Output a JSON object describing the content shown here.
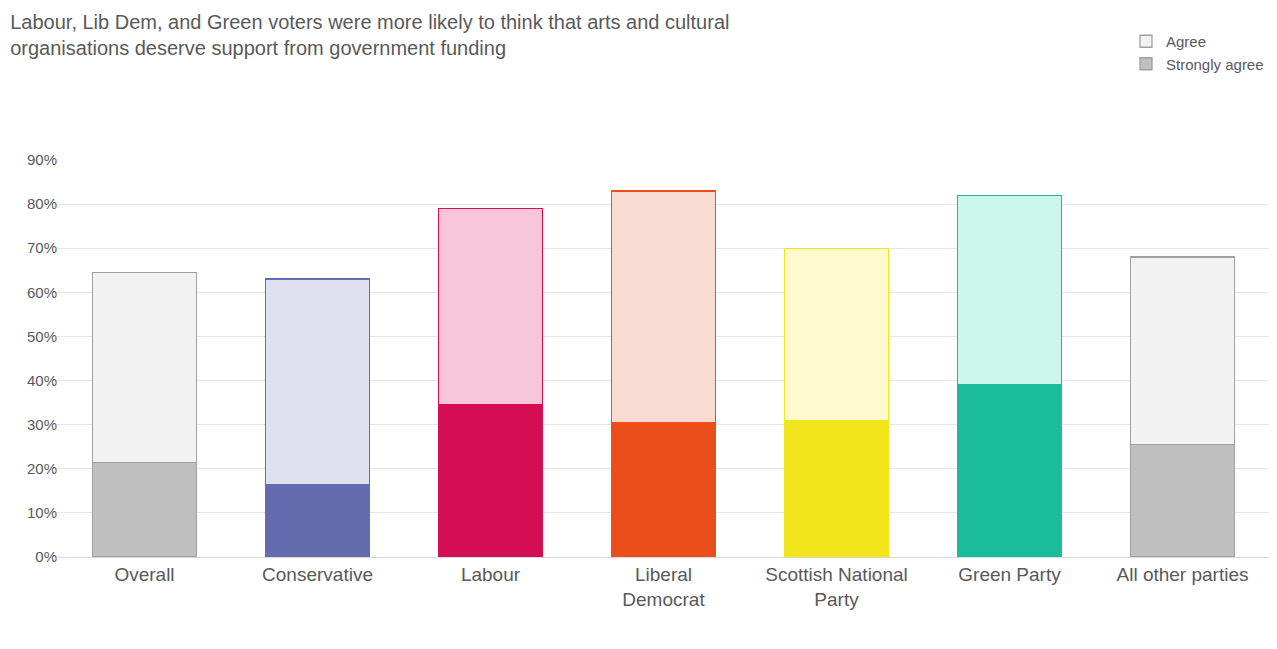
{
  "chart_data": {
    "type": "bar",
    "title": "Labour, Lib Dem, and Green voters were more likely to think that arts and cultural\norganisations deserve support from government funding",
    "categories": [
      "Overall",
      "Conservative",
      "Labour",
      "Liberal\nDemocrat",
      "Scottish National\nParty",
      "Green Party",
      "All other parties"
    ],
    "stacked": true,
    "legend": "top right",
    "grid": true,
    "ylim": [
      0,
      90
    ],
    "yticks": [
      {
        "value": 0,
        "label": "0%"
      },
      {
        "value": 10,
        "label": "10%"
      },
      {
        "value": 20,
        "label": "20%"
      },
      {
        "value": 30,
        "label": "30%"
      },
      {
        "value": 40,
        "label": "40%"
      },
      {
        "value": 50,
        "label": "50%"
      },
      {
        "value": 60,
        "label": "60%"
      },
      {
        "value": 70,
        "label": "70%"
      },
      {
        "value": 80,
        "label": "80%"
      },
      {
        "value": 90,
        "label": "90%"
      }
    ],
    "series": [
      {
        "name": "Strongly agree",
        "colors": [
          "#bfbfbf",
          "#646cb0",
          "#d50d52",
          "#e94e1b",
          "#f2e51b",
          "#1abc9c",
          "#bfbfbf"
        ],
        "values": [
          21.5,
          16.5,
          34.5,
          30.5,
          31,
          39,
          25.5
        ]
      },
      {
        "name": "Agree",
        "colors": [
          "#f2f2f2",
          "#e0e1ef",
          "#f9c6d9",
          "#f8dcd1",
          "#fcf9cc",
          "#cbf6ec",
          "#f2f2f2"
        ],
        "values": [
          43,
          46.5,
          44.5,
          52.5,
          39,
          43,
          42.5
        ]
      }
    ]
  }
}
